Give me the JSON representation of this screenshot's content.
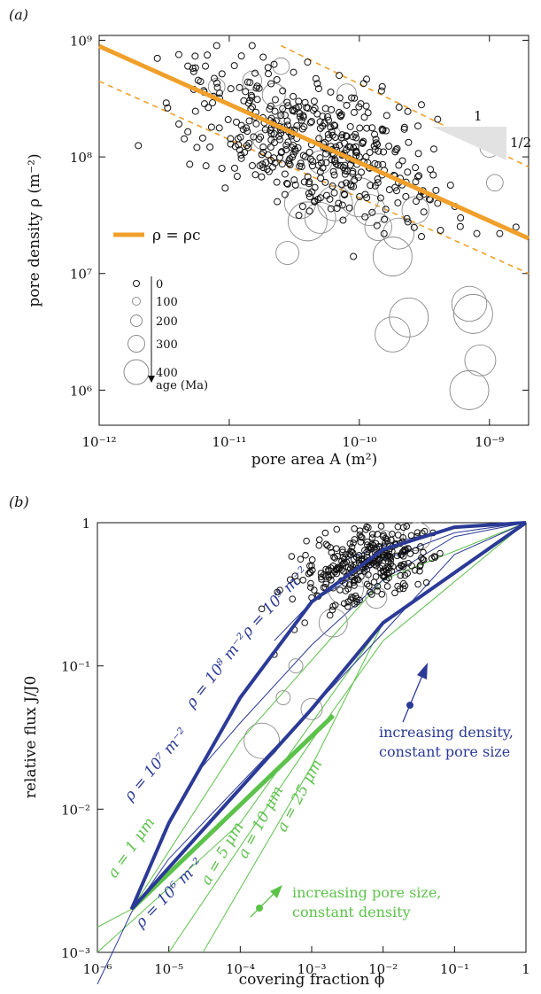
{
  "panel_a": {
    "panel_label": "(a)",
    "xlabel": "pore area A (m²)",
    "ylabel": "pore density ρ (m⁻²)",
    "x_ticks": [
      "10⁻¹²",
      "10⁻¹¹",
      "10⁻¹⁰",
      "10⁻⁹"
    ],
    "y_ticks": [
      "10⁹",
      "10⁸",
      "10⁷",
      "10⁶"
    ],
    "legend_line": "ρ = ρc",
    "age_legend": {
      "values": [
        "0",
        "100",
        "200",
        "300",
        "400"
      ],
      "title": "age (Ma)"
    },
    "slope_run": "1",
    "slope_rise": "1/2",
    "colors": {
      "critical_line": "#f0a02a",
      "young": "#111111",
      "old": "#8c8c8c"
    }
  },
  "panel_b": {
    "panel_label": "(b)",
    "xlabel": "covering fraction ϕ",
    "ylabel": "relative flux J/J0",
    "x_ticks": [
      "10⁻⁶",
      "10⁻⁵",
      "10⁻⁴",
      "10⁻³",
      "10⁻²",
      "10⁻¹",
      "1"
    ],
    "y_ticks": [
      "1",
      "10⁻¹",
      "10⁻²",
      "10⁻³"
    ],
    "density_labels": [
      "ρ = 10⁹ m⁻²",
      "ρ = 10⁸ m⁻²",
      "ρ = 10⁷ m⁻²",
      "ρ = 10⁶ m⁻²"
    ],
    "size_labels": [
      "a = 1 μm",
      "a = 5 μm",
      "a = 10 μm",
      "a = 25 μm"
    ],
    "arrow_density": "increasing density,\nconstant pore size",
    "arrow_size": "increasing pore size,\nconstant density",
    "colors": {
      "density": "#2b3a96",
      "size": "#5cc24a"
    }
  },
  "chart_data": [
    {
      "type": "scatter",
      "title": "",
      "xlabel": "pore area A (m²)",
      "ylabel": "pore density ρ (m⁻²)",
      "x_scale": "log",
      "y_scale": "log",
      "xlim": [
        1e-12,
        2e-09
      ],
      "ylim": [
        500000.0,
        1100000000.0
      ],
      "grid": false,
      "critical_line": {
        "name": "ρ = ρc",
        "x": [
          1e-12,
          2e-09
        ],
        "y": [
          890000000.0,
          20000000.0
        ]
      },
      "dashed_bounds": [
        {
          "x": [
            1e-12,
            2e-09
          ],
          "y": [
            445000000.0,
            10000000.0
          ]
        },
        {
          "x": [
            2.5e-11,
            2e-09
          ],
          "y": [
            900000000.0,
            82000000.0
          ]
        }
      ],
      "slope_triangle": {
        "run": "1",
        "rise": "1/2"
      },
      "marker_size_legend": {
        "title": "age (Ma)",
        "values": [
          0,
          100,
          200,
          300,
          400
        ]
      },
      "old_points": [
        {
          "x": 1.5e-11,
          "y": 450000000.0,
          "age": 150
        },
        {
          "x": 2.2e-11,
          "y": 340000000.0,
          "age": 200
        },
        {
          "x": 2.5e-11,
          "y": 600000000.0,
          "age": 120
        },
        {
          "x": 3e-11,
          "y": 220000000.0,
          "age": 200
        },
        {
          "x": 3.5e-11,
          "y": 40000000.0,
          "age": 300
        },
        {
          "x": 4e-11,
          "y": 28000000.0,
          "age": 400
        },
        {
          "x": 5e-11,
          "y": 30000000.0,
          "age": 300
        },
        {
          "x": 6.5e-11,
          "y": 40000000.0,
          "age": 350
        },
        {
          "x": 8e-11,
          "y": 350000000.0,
          "age": 150
        },
        {
          "x": 1e-10,
          "y": 45000000.0,
          "age": 400
        },
        {
          "x": 1.2e-10,
          "y": 35000000.0,
          "age": 300
        },
        {
          "x": 1.4e-10,
          "y": 25000000.0,
          "age": 250
        },
        {
          "x": 1.8e-10,
          "y": 14000000.0,
          "age": 400
        },
        {
          "x": 2e-10,
          "y": 22000000.0,
          "age": 300
        },
        {
          "x": 2.7e-10,
          "y": 35000000.0,
          "age": 250
        },
        {
          "x": 1.8e-10,
          "y": 3000000.0,
          "age": 350
        },
        {
          "x": 2.4e-10,
          "y": 4200000.0,
          "age": 400
        },
        {
          "x": 7e-10,
          "y": 5500000.0,
          "age": 350
        },
        {
          "x": 7.5e-10,
          "y": 4500000.0,
          "age": 400
        },
        {
          "x": 8.5e-10,
          "y": 1800000.0,
          "age": 300
        },
        {
          "x": 7e-10,
          "y": 1000000.0,
          "age": 400
        },
        {
          "x": 1e-09,
          "y": 120000000.0,
          "age": 150
        },
        {
          "x": 1.1e-09,
          "y": 60000000.0,
          "age": 120
        },
        {
          "x": 5e-11,
          "y": 90000000.0,
          "age": 200
        },
        {
          "x": 8e-12,
          "y": 400000000.0,
          "age": 120
        },
        {
          "x": 1.8e-11,
          "y": 140000000.0,
          "age": 150
        },
        {
          "x": 6e-11,
          "y": 150000000.0,
          "age": 180
        },
        {
          "x": 2.8e-11,
          "y": 15000000.0,
          "age": 200
        }
      ],
      "young_points": [
        {
          "x": 2e-12,
          "y": 125000000.0
        },
        {
          "x": 2.8e-12,
          "y": 700000000.0
        },
        {
          "x": 4.8e-12,
          "y": 600000000.0
        },
        {
          "x": 5.5e-12,
          "y": 580000000.0
        },
        {
          "x": 8e-12,
          "y": 900000000.0
        },
        {
          "x": 1.5e-11,
          "y": 900000000.0
        },
        {
          "x": 1.1e-11,
          "y": 80000000.0
        },
        {
          "x": 1.4e-11,
          "y": 120000000.0
        },
        {
          "x": 2.1e-11,
          "y": 140000000.0
        },
        {
          "x": 3.5e-11,
          "y": 220000000.0
        },
        {
          "x": 4.5e-11,
          "y": 300000000.0
        },
        {
          "x": 5e-11,
          "y": 200000000.0
        },
        {
          "x": 5.5e-11,
          "y": 260000000.0
        },
        {
          "x": 6e-11,
          "y": 180000000.0
        },
        {
          "x": 7e-11,
          "y": 240000000.0
        },
        {
          "x": 8e-11,
          "y": 150000000.0
        },
        {
          "x": 9e-11,
          "y": 120000000.0
        },
        {
          "x": 1e-10,
          "y": 100000000.0
        },
        {
          "x": 1.2e-10,
          "y": 80000000.0
        },
        {
          "x": 1.5e-10,
          "y": 70000000.0
        },
        {
          "x": 2e-10,
          "y": 60000000.0
        },
        {
          "x": 3e-10,
          "y": 50000000.0
        },
        {
          "x": 4e-10,
          "y": 40000000.0
        },
        {
          "x": 6e-10,
          "y": 30000000.0
        },
        {
          "x": 8e-10,
          "y": 22000000.0
        },
        {
          "x": 1.2e-09,
          "y": 22000000.0
        },
        {
          "x": 1.6e-09,
          "y": 25000000.0
        },
        {
          "x": 9e-11,
          "y": 14000000.0
        },
        {
          "x": 4e-10,
          "y": 210000000.0
        },
        {
          "x": 3e-10,
          "y": 280000000.0
        },
        {
          "x": 1.5e-10,
          "y": 400000000.0
        },
        {
          "x": 4e-11,
          "y": 650000000.0
        },
        {
          "x": 7e-11,
          "y": 500000000.0
        }
      ]
    },
    {
      "type": "line",
      "title": "",
      "xlabel": "covering fraction ϕ",
      "ylabel": "relative flux J/J0",
      "x_scale": "log",
      "y_scale": "log",
      "xlim": [
        1e-06,
        1
      ],
      "ylim": [
        0.001,
        1
      ],
      "grid": false,
      "density_curves": [
        {
          "name": "ρ = 10⁶ m⁻²",
          "x": [
            1e-06,
            3e-06,
            1e-05,
            0.0001,
            0.001,
            0.01,
            0.1,
            1
          ],
          "y": [
            0.0006,
            0.0019,
            0.0045,
            0.015,
            0.05,
            0.17,
            0.6,
            1.0
          ]
        },
        {
          "name": "ρ = 10⁷ m⁻²",
          "x": [
            3e-05,
            0.0001,
            0.001,
            0.01,
            0.1,
            1
          ],
          "y": [
            0.02,
            0.04,
            0.14,
            0.4,
            0.8,
            1.0
          ]
        },
        {
          "name": "ρ = 10⁸ m⁻²",
          "x": [
            0.0003,
            0.001,
            0.01,
            0.1,
            1
          ],
          "y": [
            0.15,
            0.28,
            0.55,
            0.85,
            1.0
          ]
        },
        {
          "name": "ρ = 10⁹ m⁻²",
          "x": [
            0.003,
            0.01,
            0.1,
            1
          ],
          "y": [
            0.55,
            0.7,
            0.92,
            1.0
          ]
        }
      ],
      "size_curves": [
        {
          "name": "a = 1 μm",
          "x": [
            1e-06,
            3e-06,
            0.0001,
            0.01,
            1
          ],
          "y": [
            0.0015,
            0.002,
            0.03,
            0.4,
            1.0
          ]
        },
        {
          "name": "a = 5 μm",
          "x": [
            1e-06,
            0.0001,
            0.01,
            1
          ],
          "y": [
            0.001,
            0.008,
            0.2,
            1.0
          ]
        },
        {
          "name": "a = 10 μm",
          "x": [
            1e-05,
            0.001,
            0.01,
            1
          ],
          "y": [
            0.001,
            0.03,
            0.15,
            1.0
          ]
        },
        {
          "name": "a = 25 μm",
          "x": [
            3e-05,
            0.001,
            0.01,
            1
          ],
          "y": [
            0.001,
            0.02,
            0.2,
            1.0
          ]
        }
      ],
      "bold_size_segment": {
        "name": "a = 1 μm",
        "x": [
          3e-06,
          0.002
        ],
        "y": [
          0.002,
          0.045
        ]
      },
      "bold_density_segment": {
        "name": "ρ = 10⁶ m⁻²",
        "x": [
          3e-06,
          0.001,
          0.01,
          1
        ],
        "y": [
          0.002,
          0.05,
          0.2,
          1.0
        ]
      },
      "scatter_points": [
        {
          "x": 0.0002,
          "y": 0.25
        },
        {
          "x": 0.0005,
          "y": 0.4
        },
        {
          "x": 0.001,
          "y": 0.5
        },
        {
          "x": 0.002,
          "y": 0.5
        },
        {
          "x": 0.003,
          "y": 0.6
        },
        {
          "x": 0.005,
          "y": 0.55
        },
        {
          "x": 0.008,
          "y": 0.5
        },
        {
          "x": 0.01,
          "y": 0.6
        },
        {
          "x": 0.015,
          "y": 0.7
        },
        {
          "x": 0.02,
          "y": 0.65
        },
        {
          "x": 0.03,
          "y": 0.8
        },
        {
          "x": 0.05,
          "y": 0.85
        },
        {
          "x": 0.001,
          "y": 0.3
        },
        {
          "x": 0.002,
          "y": 0.35
        },
        {
          "x": 0.004,
          "y": 0.4
        },
        {
          "x": 0.006,
          "y": 0.7
        },
        {
          "x": 0.0008,
          "y": 0.2
        },
        {
          "x": 0.0003,
          "y": 0.12
        },
        {
          "x": 0.01,
          "y": 0.8
        }
      ],
      "old_points_b": [
        {
          "x": 0.0004,
          "y": 0.06
        },
        {
          "x": 0.001,
          "y": 0.05
        },
        {
          "x": 0.002,
          "y": 0.2
        },
        {
          "x": 0.003,
          "y": 0.35
        },
        {
          "x": 0.005,
          "y": 0.4
        },
        {
          "x": 0.01,
          "y": 0.75
        },
        {
          "x": 0.03,
          "y": 0.8
        },
        {
          "x": 0.0002,
          "y": 0.03
        },
        {
          "x": 0.0006,
          "y": 0.1
        },
        {
          "x": 0.008,
          "y": 0.3
        }
      ]
    }
  ]
}
